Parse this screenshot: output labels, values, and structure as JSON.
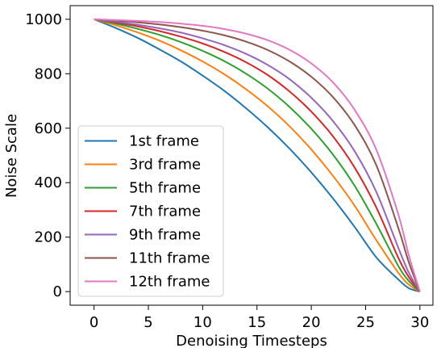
{
  "chart_data": {
    "type": "line",
    "xlabel": "Denoising Timesteps",
    "ylabel": "Noise Scale",
    "xlim": [
      -2.2,
      31.2
    ],
    "ylim": [
      -50,
      1050
    ],
    "xticks": [
      0,
      5,
      10,
      15,
      20,
      25,
      30
    ],
    "yticks": [
      0,
      200,
      400,
      600,
      800,
      1000
    ],
    "grid": false,
    "legend_position": "lower-left",
    "x": [
      0,
      2,
      4,
      6,
      8,
      10,
      12,
      14,
      16,
      18,
      20,
      22,
      24,
      26,
      28,
      29,
      30
    ],
    "series": [
      {
        "name": "1st frame",
        "color": "#1f77b4",
        "values": [
          1000,
          968,
          932,
          890,
          845,
          793,
          737,
          673,
          603,
          525,
          438,
          342,
          237,
          125,
          45,
          12,
          0
        ]
      },
      {
        "name": "3rd frame",
        "color": "#ff7f0e",
        "values": [
          1000,
          978,
          952,
          922,
          886,
          845,
          798,
          743,
          680,
          607,
          522,
          425,
          315,
          188,
          70,
          25,
          0
        ]
      },
      {
        "name": "5th frame",
        "color": "#2ca02c",
        "values": [
          1000,
          984,
          965,
          943,
          916,
          884,
          846,
          800,
          745,
          678,
          598,
          503,
          388,
          248,
          95,
          38,
          0
        ]
      },
      {
        "name": "7th frame",
        "color": "#d62728",
        "values": [
          1000,
          988,
          974,
          957,
          936,
          911,
          880,
          842,
          795,
          735,
          661,
          570,
          455,
          308,
          125,
          52,
          0
        ]
      },
      {
        "name": "9th frame",
        "color": "#9467bd",
        "values": [
          1000,
          991,
          980,
          967,
          951,
          930,
          905,
          873,
          832,
          780,
          712,
          626,
          515,
          365,
          162,
          68,
          0
        ]
      },
      {
        "name": "11th frame",
        "color": "#8c564b",
        "values": [
          1000,
          995,
          989,
          981,
          971,
          958,
          941,
          918,
          887,
          845,
          789,
          714,
          611,
          463,
          235,
          105,
          0
        ]
      },
      {
        "name": "12th frame",
        "color": "#e377c2",
        "values": [
          1000,
          997,
          994,
          990,
          984,
          976,
          964,
          947,
          923,
          888,
          838,
          768,
          667,
          520,
          285,
          130,
          0
        ]
      }
    ]
  }
}
